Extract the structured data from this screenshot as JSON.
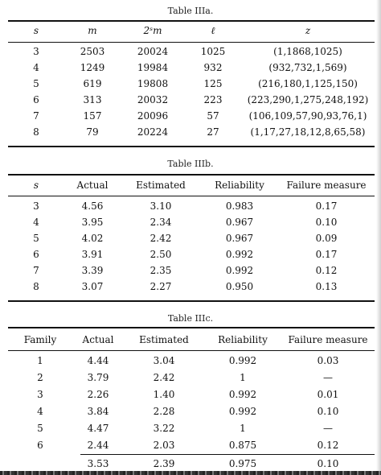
{
  "table_a": {
    "caption": "Table IIIa.",
    "headers": [
      "s",
      "m",
      "2ˢm",
      "ℓ",
      "z"
    ],
    "rows": [
      [
        "3",
        "2503",
        "20024",
        "1025",
        "(1,1868,1025)"
      ],
      [
        "4",
        "1249",
        "19984",
        "932",
        "(932,732,1,569)"
      ],
      [
        "5",
        "619",
        "19808",
        "125",
        "(216,180,1,125,150)"
      ],
      [
        "6",
        "313",
        "20032",
        "223",
        "(223,290,1,275,248,192)"
      ],
      [
        "7",
        "157",
        "20096",
        "57",
        "(106,109,57,90,93,76,1)"
      ],
      [
        "8",
        "79",
        "20224",
        "27",
        "(1,17,27,18,12,8,65,58)"
      ]
    ]
  },
  "table_b": {
    "caption": "Table IIIb.",
    "headers": [
      "s",
      "Actual",
      "Estimated",
      "Reliability",
      "Failure measure"
    ],
    "rows": [
      [
        "3",
        "4.56",
        "3.10",
        "0.983",
        "0.17"
      ],
      [
        "4",
        "3.95",
        "2.34",
        "0.967",
        "0.10"
      ],
      [
        "5",
        "4.02",
        "2.42",
        "0.967",
        "0.09"
      ],
      [
        "6",
        "3.91",
        "2.50",
        "0.992",
        "0.17"
      ],
      [
        "7",
        "3.39",
        "2.35",
        "0.992",
        "0.12"
      ],
      [
        "8",
        "3.07",
        "2.27",
        "0.950",
        "0.13"
      ]
    ]
  },
  "table_c": {
    "caption": "Table IIIc.",
    "headers": [
      "Family",
      "Actual",
      "Estimated",
      "Reliability",
      "Failure measure"
    ],
    "rows": [
      [
        "1",
        "4.44",
        "3.04",
        "0.992",
        "0.03"
      ],
      [
        "2",
        "3.79",
        "2.42",
        "1",
        "—"
      ],
      [
        "3",
        "2.26",
        "1.40",
        "0.992",
        "0.01"
      ],
      [
        "4",
        "3.84",
        "2.28",
        "0.992",
        "0.10"
      ],
      [
        "5",
        "4.47",
        "3.22",
        "1",
        "—"
      ],
      [
        "6",
        "2.44",
        "2.03",
        "0.875",
        "0.12"
      ],
      [
        "",
        "3.53",
        "2.39",
        "0.975",
        "0.10"
      ]
    ]
  }
}
